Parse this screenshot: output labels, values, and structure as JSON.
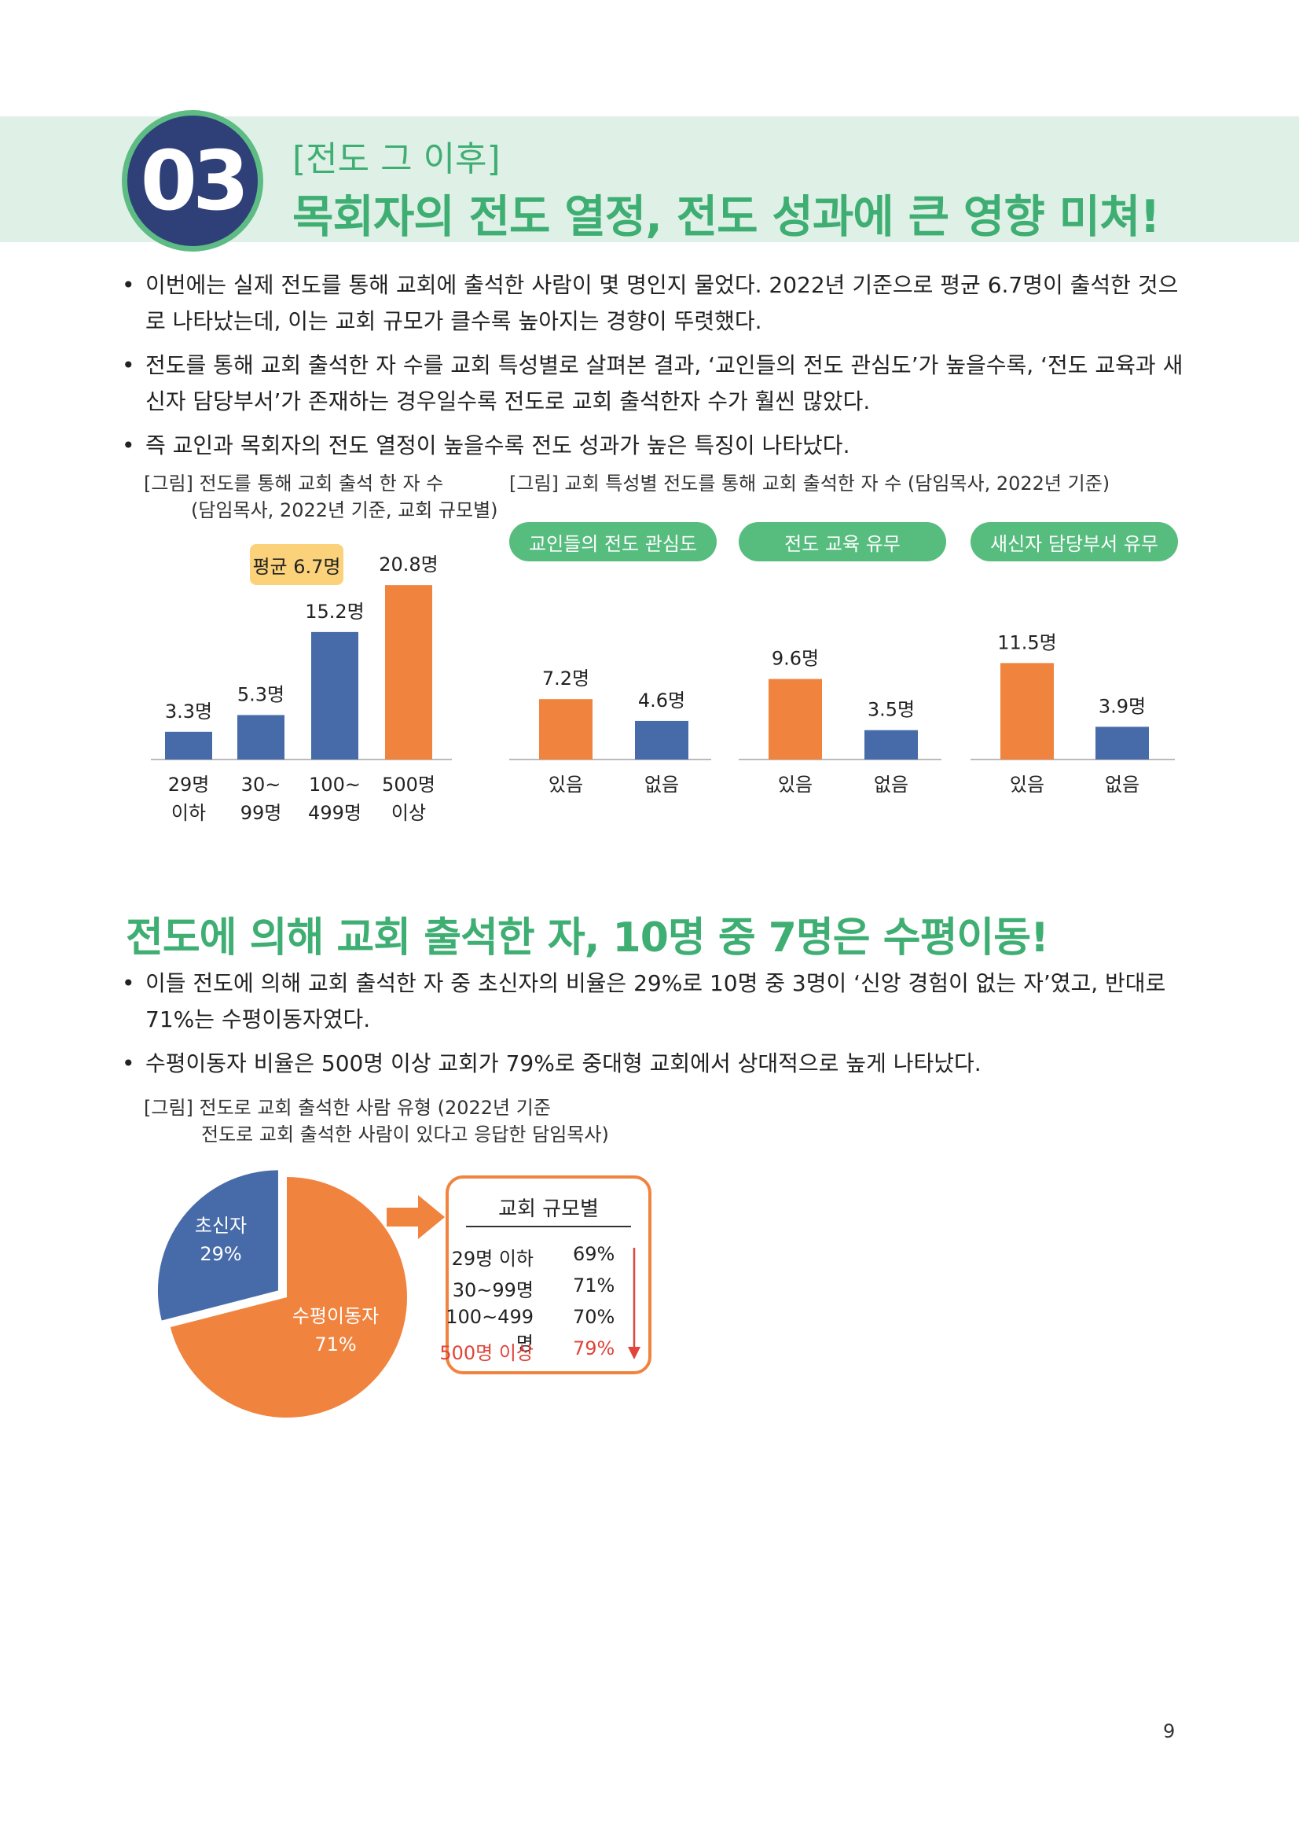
{
  "header": {
    "number": "03",
    "label": "[전도 그 이후]",
    "title": "목회자의 전도 열정, 전도 성과에 큰 영향 미쳐!"
  },
  "bullets1": [
    "이번에는 실제 전도를 통해 교회에 출석한 사람이 몇 명인지 물었다. 2022년 기준으로 평균 6.7명이 출석한 것으로 나타났는데, 이는 교회 규모가 클수록 높아지는 경향이 뚜렷했다.",
    "전도를 통해 교회 출석한 자 수를 교회 특성별로 살펴본 결과, ‘교인들의 전도 관심도’가 높을수록, ‘전도 교육과 새신자 담당부서’가 존재하는 경우일수록 전도로 교회 출석한자 수가 훨씬 많았다.",
    "즉 교인과 목회자의 전도 열정이 높을수록 전도 성과가 높은 특징이 나타났다."
  ],
  "chart1": {
    "caption_line1": "[그림] 전도를 통해 교회 출석 한 자 수",
    "caption_line2": "(담임목사, 2022년 기준, 교회 규모별)",
    "average_label": "평균 6.7명"
  },
  "chart2": {
    "caption": "[그림] 교회 특성별 전도를 통해 교회 출석한 자 수 (담임목사, 2022년 기준)",
    "pills": [
      "교인들의 전도 관심도",
      "전도 교육 유무",
      "새신자 담당부서 유무"
    ]
  },
  "section2": {
    "title": "전도에 의해 교회 출석한 자, 10명 중 7명은 수평이동!",
    "bullets": [
      "이들 전도에 의해 교회 출석한 자 중 초신자의 비율은 29%로 10명 중 3명이 ‘신앙 경험이 없는 자’였고, 반대로 71%는 수평이동자였다.",
      "수평이동자 비율은 500명 이상 교회가 79%로 중대형 교회에서 상대적으로 높게 나타났다."
    ]
  },
  "chart3": {
    "caption_line1": "[그림] 전도로 교회 출석한 사람 유형 (2022년 기준",
    "caption_line2": "전도로 교회 출석한 사람이 있다고 응답한 담임목사)",
    "box_title": "교회 규모별",
    "box_rows": [
      {
        "label": "29명 이하",
        "value": "69%"
      },
      {
        "label": "30~99명",
        "value": "71%"
      },
      {
        "label": "100~499명",
        "value": "70%"
      },
      {
        "label": "500명 이상",
        "value": "79%"
      }
    ]
  },
  "chart_data": [
    {
      "type": "bar",
      "categories": [
        "29명 이하",
        "30~ 99명",
        "100~ 499명",
        "500명 이상"
      ],
      "category_lines": [
        [
          "29명",
          "이하"
        ],
        [
          "30~",
          "99명"
        ],
        [
          "100~",
          "499명"
        ],
        [
          "500명",
          "이상"
        ]
      ],
      "values": [
        3.3,
        5.3,
        15.2,
        20.8
      ],
      "labels": [
        "3.3명",
        "5.3명",
        "15.2명",
        "20.8명"
      ],
      "colors": [
        "#476ba8",
        "#476ba8",
        "#476ba8",
        "#f0843f"
      ],
      "ylim": [
        0,
        21
      ]
    },
    {
      "type": "bar",
      "groups": [
        {
          "name": "교인들의 전도 관심도",
          "categories": [
            "있음",
            "없음"
          ],
          "values": [
            7.2,
            4.6
          ],
          "labels": [
            "7.2명",
            "4.6명"
          ]
        },
        {
          "name": "전도 교육 유무",
          "categories": [
            "있음",
            "없음"
          ],
          "values": [
            9.6,
            3.5
          ],
          "labels": [
            "9.6명",
            "3.5명"
          ]
        },
        {
          "name": "새신자 담당부서 유무",
          "categories": [
            "있음",
            "없음"
          ],
          "values": [
            11.5,
            3.9
          ],
          "labels": [
            "11.5명",
            "3.9명"
          ]
        }
      ],
      "colors": [
        "#f0843f",
        "#476ba8"
      ],
      "ylim": [
        0,
        21
      ]
    },
    {
      "type": "pie",
      "slices": [
        {
          "name": "초신자",
          "value": 29,
          "label": "29%",
          "color": "#476ba8"
        },
        {
          "name": "수평이동자",
          "value": 71,
          "label": "71%",
          "color": "#f0843f"
        }
      ]
    }
  ],
  "page_number": "9"
}
